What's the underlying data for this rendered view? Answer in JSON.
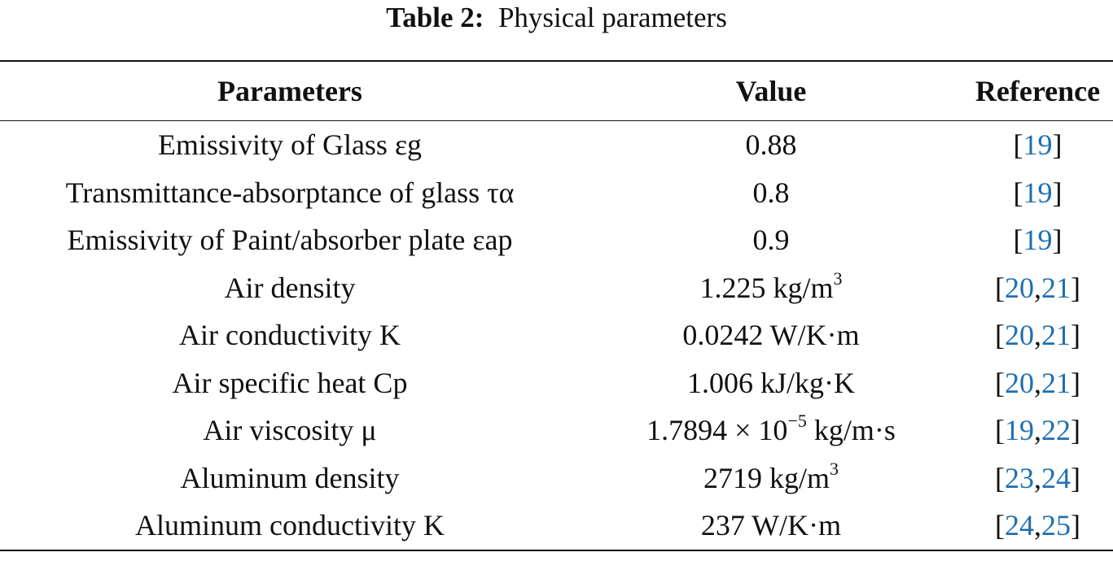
{
  "caption": {
    "label": "Table 2:",
    "title": "Physical parameters"
  },
  "headers": {
    "parameters": "Parameters",
    "value": "Value",
    "reference": "Reference"
  },
  "rows": [
    {
      "param": "Emissivity of Glass εg",
      "value_main": "0.88",
      "value_sup": "",
      "value_tail": "",
      "refs": [
        "19"
      ]
    },
    {
      "param": "Transmittance-absorptance of glass τα",
      "value_main": "0.8",
      "value_sup": "",
      "value_tail": "",
      "refs": [
        "19"
      ]
    },
    {
      "param": "Emissivity of Paint/absorber plate εap",
      "value_main": "0.9",
      "value_sup": "",
      "value_tail": "",
      "refs": [
        "19"
      ]
    },
    {
      "param": "Air density",
      "value_main": "1.225 kg/m",
      "value_sup": "3",
      "value_tail": "",
      "refs": [
        "20",
        "21"
      ]
    },
    {
      "param": "Air conductivity K",
      "value_main": "0.0242 W/K·m",
      "value_sup": "",
      "value_tail": "",
      "refs": [
        "20",
        "21"
      ]
    },
    {
      "param": "Air specific heat Cp",
      "value_main": "1.006 kJ/kg·K",
      "value_sup": "",
      "value_tail": "",
      "refs": [
        "20",
        "21"
      ]
    },
    {
      "param": "Air viscosity μ",
      "value_main": "1.7894 × 10",
      "value_sup": "−5",
      "value_tail": " kg/m·s",
      "refs": [
        "19",
        "22"
      ]
    },
    {
      "param": "Aluminum density",
      "value_main": "2719 kg/m",
      "value_sup": "3",
      "value_tail": "",
      "refs": [
        "23",
        "24"
      ]
    },
    {
      "param": "Aluminum conductivity K",
      "value_main": "237 W/K·m",
      "value_sup": "",
      "value_tail": "",
      "refs": [
        "24",
        "25"
      ]
    }
  ]
}
